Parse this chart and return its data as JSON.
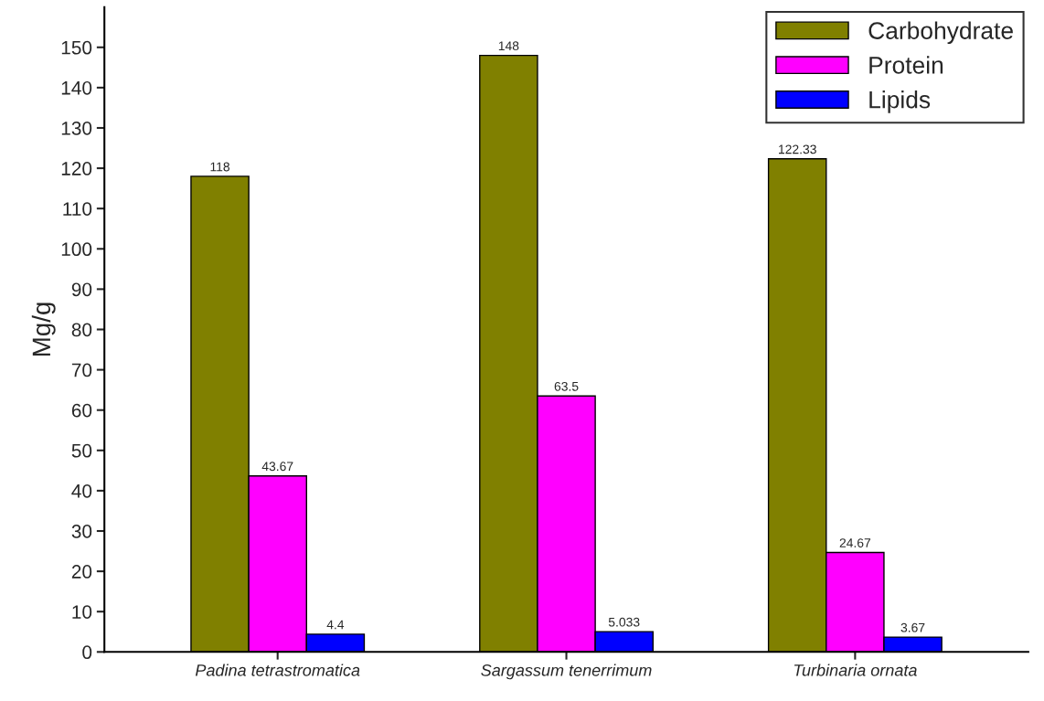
{
  "chart_data": {
    "type": "bar",
    "ylabel": "Mg/g",
    "categories": [
      "Padina tetrastromatica",
      "Sargassum tenerrimum",
      "Turbinaria ornata"
    ],
    "series": [
      {
        "name": "Carbohydrate",
        "color": "#808000",
        "values": [
          118,
          148,
          122.33
        ]
      },
      {
        "name": "Protein",
        "color": "#ff00ff",
        "values": [
          43.67,
          63.5,
          24.67
        ]
      },
      {
        "name": "Lipids",
        "color": "#0000ff",
        "values": [
          4.4,
          5.033,
          3.67
        ]
      }
    ],
    "ylim": [
      0,
      160
    ],
    "yticks": [
      0,
      10,
      20,
      30,
      40,
      50,
      60,
      70,
      80,
      90,
      100,
      110,
      120,
      130,
      140,
      150
    ],
    "data_labels": true,
    "grid": false,
    "legend": "top right"
  }
}
